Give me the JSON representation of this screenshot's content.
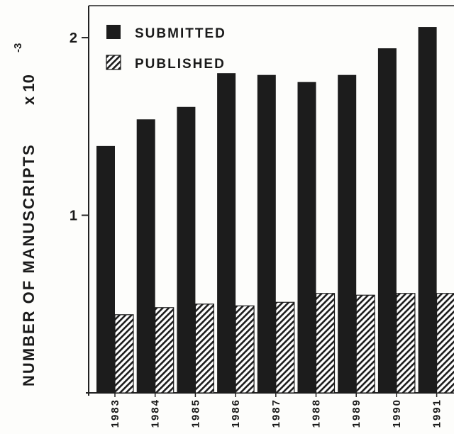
{
  "chart_data": {
    "type": "bar",
    "title": "",
    "xlabel": "",
    "ylabel": "NUMBER OF MANUSCRIPTS",
    "ylabel_suffix": "x 10",
    "ylabel_exponent": "-3",
    "categories": [
      "1983",
      "1984",
      "1985",
      "1986",
      "1987",
      "1988",
      "1989",
      "1990",
      "1991"
    ],
    "series": [
      {
        "name": "SUBMITTED",
        "fill": "solid",
        "values": [
          1.39,
          1.54,
          1.61,
          1.8,
          1.79,
          1.75,
          1.79,
          1.94,
          2.06
        ]
      },
      {
        "name": "PUBLISHED",
        "fill": "hatched",
        "values": [
          0.44,
          0.48,
          0.5,
          0.49,
          0.51,
          0.56,
          0.55,
          0.56,
          0.56
        ]
      }
    ],
    "ylim": [
      0,
      2.18
    ],
    "yticks": [
      "1",
      "2"
    ],
    "grid": false,
    "legend_position": "top-left",
    "colors": {
      "bar": "#1c1c1c",
      "axis": "#222222",
      "hatch": "#1c1c1c",
      "background": "#fdfdfb"
    }
  }
}
